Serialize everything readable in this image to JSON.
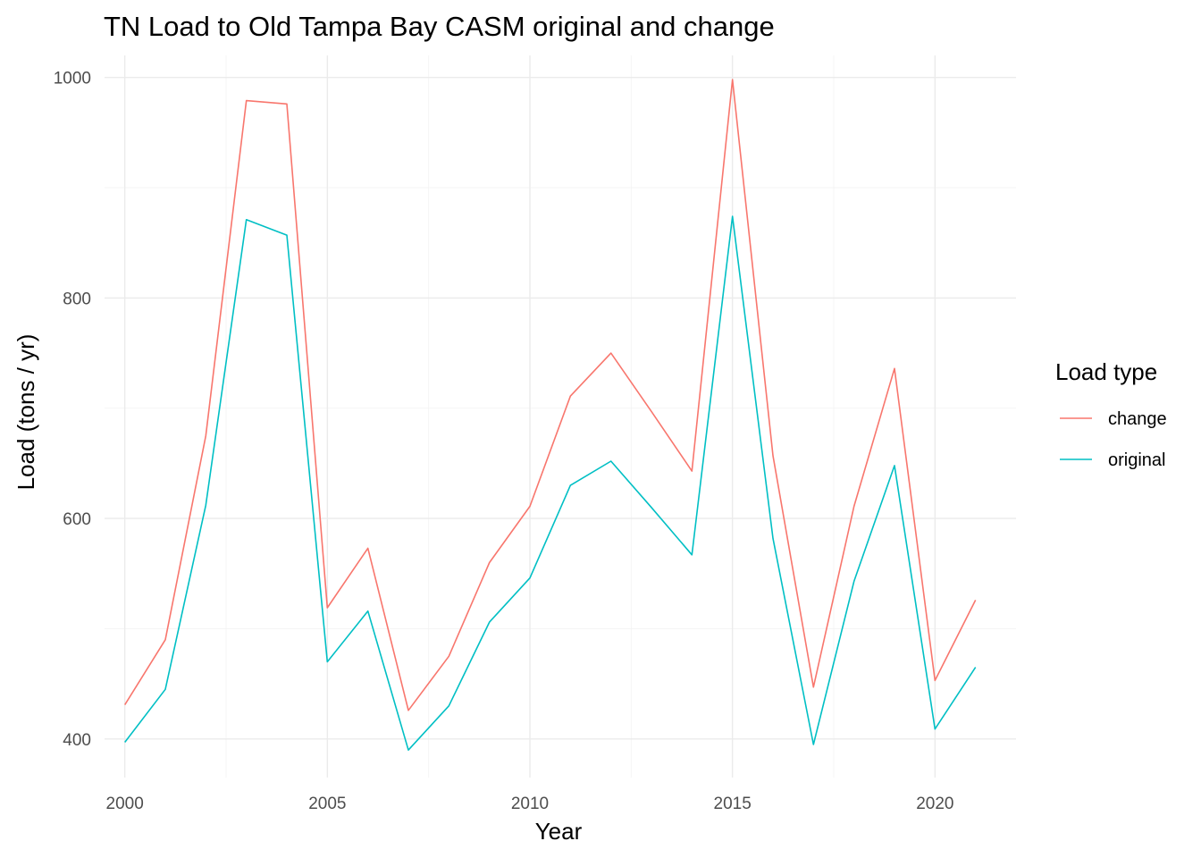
{
  "chart_data": {
    "type": "line",
    "title": "TN Load to Old Tampa Bay CASM original and change",
    "xlabel": "Year",
    "ylabel": "Load (tons / yr)",
    "xlim": [
      1999.5,
      2022
    ],
    "ylim": [
      365,
      1020
    ],
    "x_ticks": [
      2000,
      2005,
      2010,
      2015,
      2020
    ],
    "y_ticks": [
      400,
      600,
      800,
      1000
    ],
    "grid": true,
    "legend": {
      "title": "Load type",
      "position": "right"
    },
    "x": [
      2000,
      2001,
      2002,
      2003,
      2004,
      2005,
      2006,
      2007,
      2008,
      2009,
      2010,
      2011,
      2012,
      2013,
      2014,
      2015,
      2016,
      2017,
      2018,
      2019,
      2020,
      2021
    ],
    "series": [
      {
        "name": "change",
        "color": "#F8766D",
        "values": [
          431,
          490,
          675,
          979,
          976,
          519,
          573,
          426,
          475,
          560,
          611,
          711,
          750,
          697,
          643,
          998,
          657,
          447,
          611,
          736,
          453,
          526
        ]
      },
      {
        "name": "original",
        "color": "#00BFC4",
        "values": [
          397,
          445,
          612,
          871,
          857,
          470,
          516,
          390,
          430,
          506,
          546,
          630,
          652,
          610,
          567,
          874,
          582,
          395,
          543,
          648,
          409,
          465
        ]
      }
    ]
  }
}
